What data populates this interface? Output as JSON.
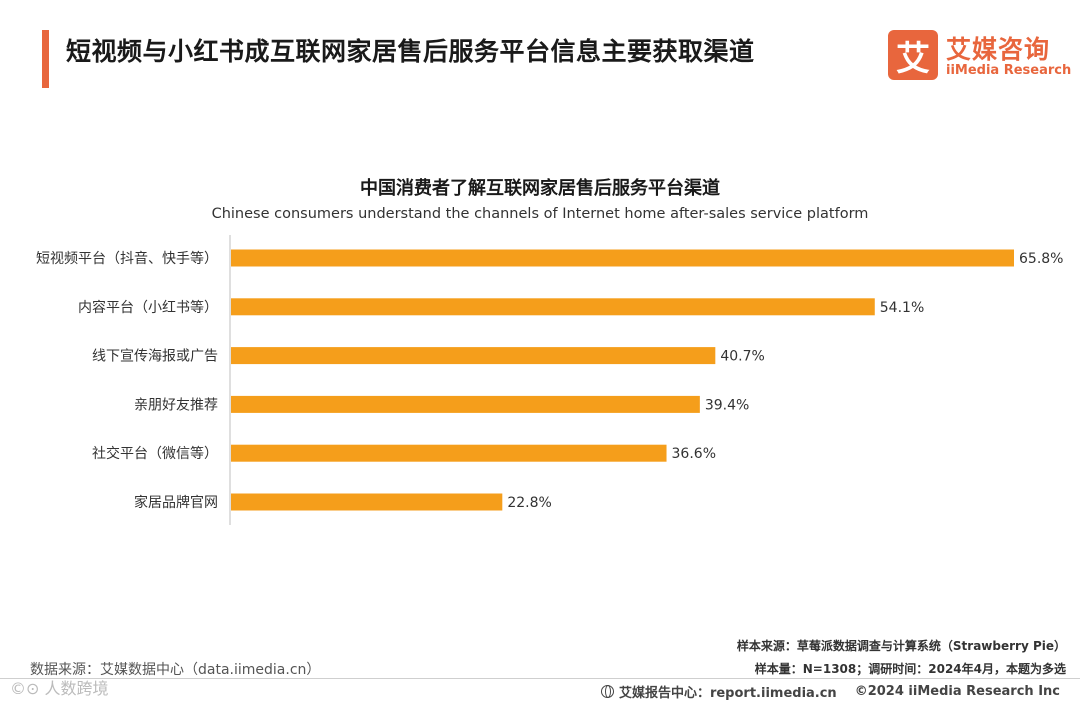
{
  "header": {
    "title": "短视频与小红书成互联网家居售后服务平台信息主要获取渠道",
    "logo": {
      "mark": "艾",
      "name_cn": "艾媒咨询",
      "name_en": "iiMedia Research"
    }
  },
  "colors": {
    "accent": "#e8663d",
    "bar": "#f59e1b"
  },
  "chart_data": {
    "type": "bar",
    "orientation": "horizontal",
    "title": "中国消费者了解互联网家居售后服务平台渠道",
    "subtitle": "Chinese consumers understand the channels of Internet home after-sales service platform",
    "categories": [
      "短视频平台（抖音、快手等）",
      "内容平台（小红书等）",
      "线下宣传海报或广告",
      "亲朋好友推荐",
      "社交平台（微信等）",
      "家居品牌官网"
    ],
    "values": [
      65.8,
      54.1,
      40.7,
      39.4,
      36.6,
      22.8
    ],
    "value_labels": [
      "65.8%",
      "54.1%",
      "40.7%",
      "39.4%",
      "36.6%",
      "22.8%"
    ],
    "unit": "%",
    "xlim": [
      0,
      65.8
    ],
    "grid": false,
    "legend": "none"
  },
  "footer": {
    "data_source": "数据来源：艾媒数据中心（data.iimedia.cn）",
    "watermark": "©⊙ 人数跨境",
    "sample_source": "样本来源：草莓派数据调查与计算系统（Strawberry Pie）",
    "sample_size": "样本量：N=1308；调研时间：2024年4月，本题为多选",
    "report_center": "艾媒报告中心：report.iimedia.cn",
    "copyright": "©2024  iiMedia Research  Inc"
  }
}
